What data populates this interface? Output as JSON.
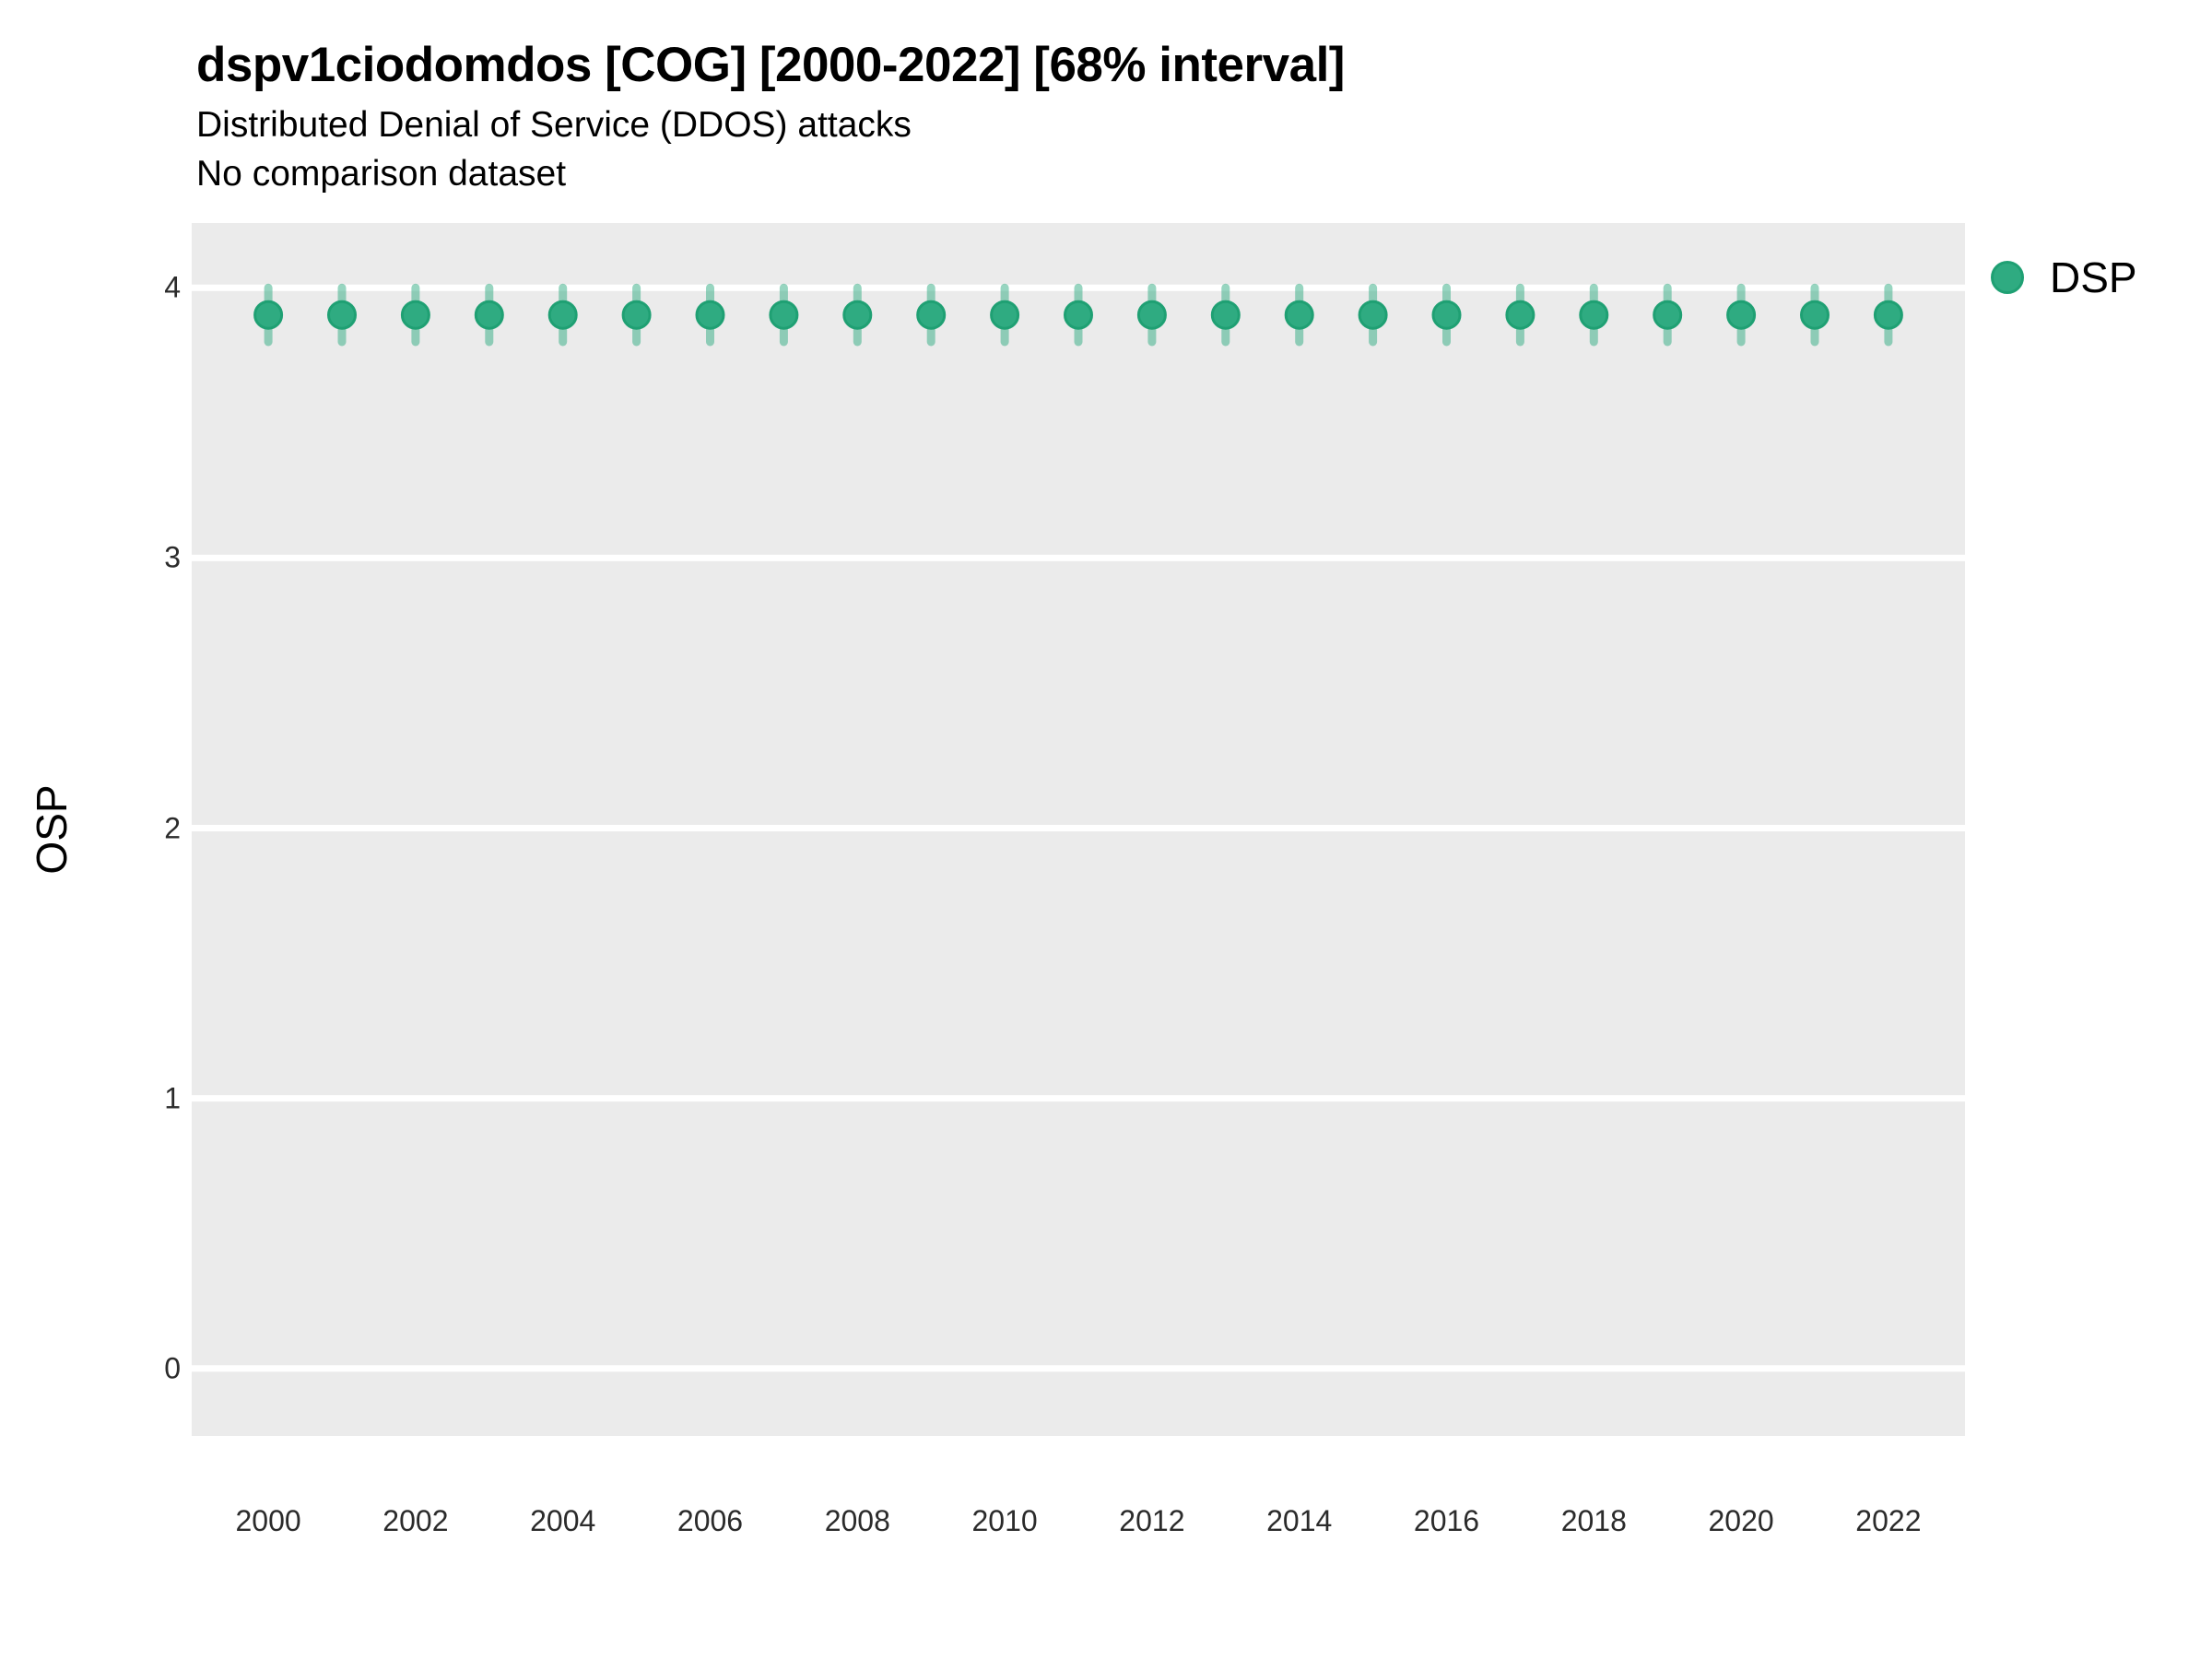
{
  "header": {
    "title": "dspv1ciodomdos [COG] [2000-2022] [68% interval]",
    "subtitle1": "Distributed Denial of Service (DDOS) attacks",
    "subtitle2": "No comparison dataset"
  },
  "chart_data": {
    "type": "scatter",
    "title": "dspv1ciodomdos [COG] [2000-2022] [68% interval]",
    "xlabel": "",
    "ylabel": "OSP",
    "xlim": [
      1998.96,
      2023.04
    ],
    "ylim": [
      -0.25,
      4.24
    ],
    "xticks": [
      2000,
      2002,
      2004,
      2006,
      2008,
      2010,
      2012,
      2014,
      2016,
      2018,
      2020,
      2022
    ],
    "yticks": [
      0,
      1,
      2,
      3,
      4
    ],
    "grid": "major-horizontal-white-on-gray",
    "panel_color": "#EBEBEB",
    "gridline_color": "#FFFFFF",
    "legend_position": "right",
    "interval_label": "68% interval",
    "series": [
      {
        "name": "DSP",
        "color": "#2FAB81",
        "stroke_color": "#1FA073",
        "interval_color": "rgba(47,171,129,0.5)",
        "points": [
          {
            "x": 2000,
            "y": 3.9,
            "lo": 3.8,
            "hi": 4.0
          },
          {
            "x": 2001,
            "y": 3.9,
            "lo": 3.8,
            "hi": 4.0
          },
          {
            "x": 2002,
            "y": 3.9,
            "lo": 3.8,
            "hi": 4.0
          },
          {
            "x": 2003,
            "y": 3.9,
            "lo": 3.8,
            "hi": 4.0
          },
          {
            "x": 2004,
            "y": 3.9,
            "lo": 3.8,
            "hi": 4.0
          },
          {
            "x": 2005,
            "y": 3.9,
            "lo": 3.8,
            "hi": 4.0
          },
          {
            "x": 2006,
            "y": 3.9,
            "lo": 3.8,
            "hi": 4.0
          },
          {
            "x": 2007,
            "y": 3.9,
            "lo": 3.8,
            "hi": 4.0
          },
          {
            "x": 2008,
            "y": 3.9,
            "lo": 3.8,
            "hi": 4.0
          },
          {
            "x": 2009,
            "y": 3.9,
            "lo": 3.8,
            "hi": 4.0
          },
          {
            "x": 2010,
            "y": 3.9,
            "lo": 3.8,
            "hi": 4.0
          },
          {
            "x": 2011,
            "y": 3.9,
            "lo": 3.8,
            "hi": 4.0
          },
          {
            "x": 2012,
            "y": 3.9,
            "lo": 3.8,
            "hi": 4.0
          },
          {
            "x": 2013,
            "y": 3.9,
            "lo": 3.8,
            "hi": 4.0
          },
          {
            "x": 2014,
            "y": 3.9,
            "lo": 3.8,
            "hi": 4.0
          },
          {
            "x": 2015,
            "y": 3.9,
            "lo": 3.8,
            "hi": 4.0
          },
          {
            "x": 2016,
            "y": 3.9,
            "lo": 3.8,
            "hi": 4.0
          },
          {
            "x": 2017,
            "y": 3.9,
            "lo": 3.8,
            "hi": 4.0
          },
          {
            "x": 2018,
            "y": 3.9,
            "lo": 3.8,
            "hi": 4.0
          },
          {
            "x": 2019,
            "y": 3.9,
            "lo": 3.8,
            "hi": 4.0
          },
          {
            "x": 2020,
            "y": 3.9,
            "lo": 3.8,
            "hi": 4.0
          },
          {
            "x": 2021,
            "y": 3.9,
            "lo": 3.8,
            "hi": 4.0
          },
          {
            "x": 2022,
            "y": 3.9,
            "lo": 3.8,
            "hi": 4.0
          }
        ]
      }
    ]
  }
}
